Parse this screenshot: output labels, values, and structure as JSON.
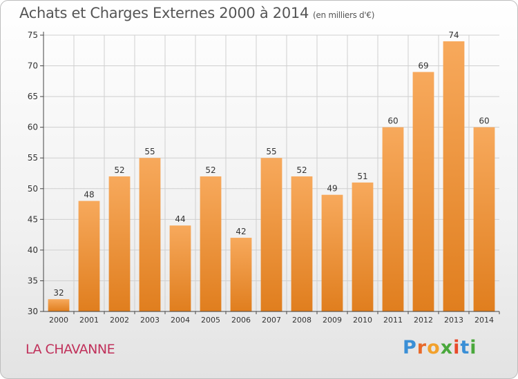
{
  "title": "Achats et Charges Externes 2000 à 2014",
  "subtitle": "(en milliers d'€)",
  "location_label": "LA CHAVANNE",
  "logo": {
    "text": "Proxiti",
    "letters": [
      "P",
      "r",
      "o",
      "x",
      "i",
      "t",
      "i"
    ],
    "colors": [
      "#3a8fd6",
      "#e8692a",
      "#f2a12c",
      "#4aa83c",
      "#e84a2a",
      "#3a8fd6",
      "#4aa83c"
    ]
  },
  "colors": {
    "bar_top": "#f7a95c",
    "bar_bottom": "#e07e1e",
    "axis": "#444444",
    "grid": "#cfcfcf",
    "label": "#333333"
  },
  "chart_data": {
    "type": "bar",
    "title": "Achats et Charges Externes 2000 à 2014",
    "subtitle": "(en milliers d'€)",
    "categories": [
      "2000",
      "2001",
      "2002",
      "2003",
      "2004",
      "2005",
      "2006",
      "2007",
      "2008",
      "2009",
      "2010",
      "2011",
      "2012",
      "2013",
      "2014"
    ],
    "values": [
      32,
      48,
      52,
      55,
      44,
      52,
      42,
      55,
      52,
      49,
      51,
      60,
      69,
      74,
      60
    ],
    "ylim": [
      30,
      75
    ],
    "yticks": [
      30,
      35,
      40,
      45,
      50,
      55,
      60,
      65,
      70,
      75
    ],
    "grid": true,
    "data_labels": true
  }
}
